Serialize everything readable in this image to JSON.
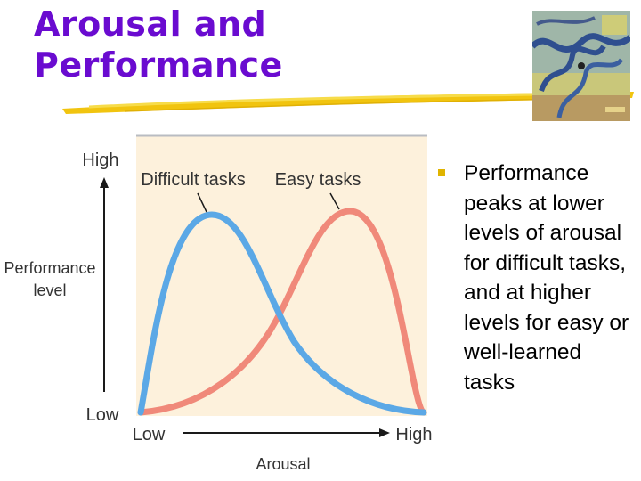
{
  "slide": {
    "title_line1": "Arousal and",
    "title_line2": "Performance",
    "bullet": "Performance peaks at lower levels of arousal for difficult tasks, and at higher levels for easy or well-learned tasks"
  },
  "figure": {
    "y_high": "High",
    "y_low": "Low",
    "y_title_line1": "Performance",
    "y_title_line2": "level",
    "x_low": "Low",
    "x_high": "High",
    "x_title": "Arousal",
    "difficult_label": "Difficult tasks",
    "easy_label": "Easy tasks"
  },
  "colors": {
    "title": "#6a0bd0",
    "difficult_curve": "#5ba8e6",
    "easy_curve": "#f0897a",
    "plot_bg": "#fdf1dc",
    "bullet_marker": "#e0b400"
  }
}
